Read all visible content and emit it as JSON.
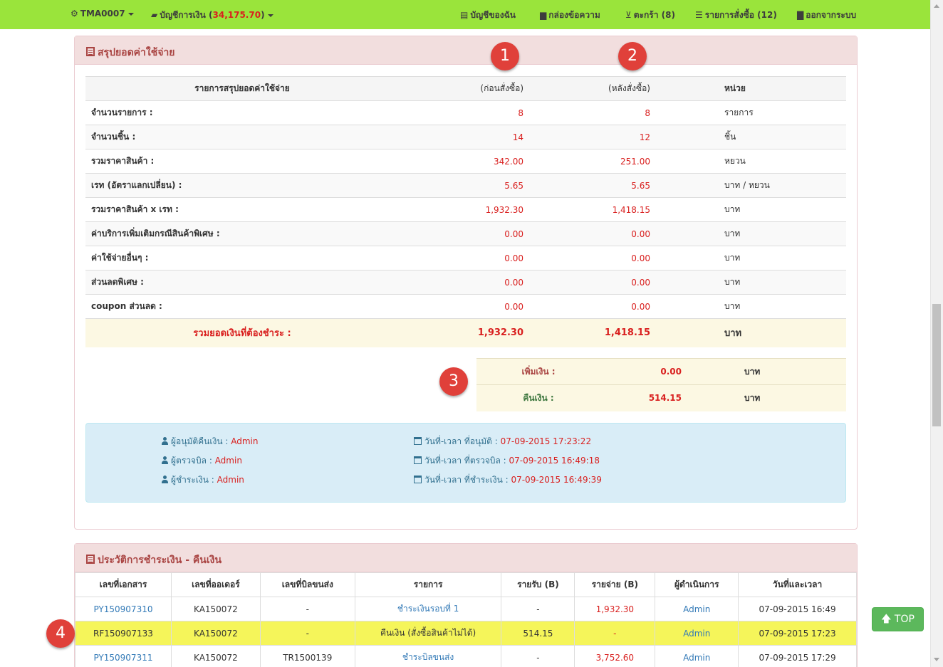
{
  "nav": {
    "user": "TMA0007",
    "account_label": "บัญชีการเงิน (",
    "account_balance": "34,175.70",
    "account_close": ")",
    "my_account": "บัญชีของฉัน",
    "messages": "กล่องข้อความ",
    "cart": "ตะกร้า (8)",
    "orders": "รายการสั่งซื้อ (12)",
    "logout": "ออกจากระบบ"
  },
  "summary": {
    "title": "สรุปยอดค่าใช้จ่าย",
    "headers": [
      "รายการสรุปยอดค่าใช้จ่าย",
      "(ก่อนสั่งซื้อ)",
      "(หลังสั่งซื้อ)",
      "หน่วย"
    ],
    "rows": [
      {
        "label": "จำนวนรายการ :",
        "before": "8",
        "after": "8",
        "unit": "รายการ"
      },
      {
        "label": "จำนวนชิ้น :",
        "before": "14",
        "after": "12",
        "unit": "ชิ้น"
      },
      {
        "label": "รวมราคาสินค้า :",
        "before": "342.00",
        "after": "251.00",
        "unit": "หยวน"
      },
      {
        "label": "เรท (อัตราแลกเปลี่ยน) :",
        "before": "5.65",
        "after": "5.65",
        "unit": "บาท / หยวน"
      },
      {
        "label": "รวมราคาสินค้า x เรท :",
        "before": "1,932.30",
        "after": "1,418.15",
        "unit": "บาท"
      },
      {
        "label": "ค่าบริการเพิ่มเติมกรณีสินค้าพิเศษ :",
        "before": "0.00",
        "after": "0.00",
        "unit": "บาท"
      },
      {
        "label": "ค่าใช้จ่ายอื่นๆ :",
        "before": "0.00",
        "after": "0.00",
        "unit": "บาท"
      },
      {
        "label": "ส่วนลดพิเศษ :",
        "before": "0.00",
        "after": "0.00",
        "unit": "บาท"
      },
      {
        "label": "coupon ส่วนลด :",
        "before": "0.00",
        "after": "0.00",
        "unit": "บาท"
      }
    ],
    "total": {
      "label": "รวมยอดเงินที่ต้องชำระ :",
      "before": "1,932.30",
      "after": "1,418.15",
      "unit": "บาท"
    }
  },
  "adjust": {
    "add_label": "เพิ่มเงิน :",
    "add_value": "0.00",
    "add_unit": "บาท",
    "refund_label": "คืนเงิน :",
    "refund_value": "514.15",
    "refund_unit": "บาท"
  },
  "approval": {
    "approver_label": "ผู้อนุมัติคืนเงิน : ",
    "approver": "Admin",
    "checker_label": "ผู้ตรวจบิล : ",
    "checker": "Admin",
    "payer_label": "ผู้ชำระเงิน : ",
    "payer": "Admin",
    "approved_label": "วันที่-เวลา ที่อนุมัติ : ",
    "approved_at": "07-09-2015 17:23:22",
    "checked_label": "วันที่-เวลา ที่ตรวจบิล : ",
    "checked_at": "07-09-2015 16:49:18",
    "paid_label": "วันที่-เวลา ที่ชำระเงิน : ",
    "paid_at": "07-09-2015 16:49:39"
  },
  "history": {
    "title": "ประวัติการชำระเงิน - คืนเงิน",
    "headers": [
      "เลขที่เอกสาร",
      "เลขที่ออเดอร์",
      "เลขที่บิลขนส่ง",
      "รายการ",
      "รายรับ (B)",
      "รายจ่าย (B)",
      "ผู้ดำเนินการ",
      "วันที่และเวลา"
    ],
    "rows": [
      {
        "doc": "PY150907310",
        "order": "KA150072",
        "bill": "-",
        "item": "ชำระเงินรอบที่ 1",
        "income": "-",
        "expense": "1,932.30",
        "operator": "Admin",
        "datetime": "07-09-2015 16:49"
      },
      {
        "doc": "RF150907133",
        "order": "KA150072",
        "bill": "-",
        "item": "คืนเงิน (สั่งซื้อสินค้าไม่ได้)",
        "income": "514.15",
        "expense": "-",
        "operator": "Admin",
        "datetime": "07-09-2015 17:23"
      },
      {
        "doc": "PY150907311",
        "order": "KA150072",
        "bill": "TR1500139",
        "item": "ชำระบิลขนส่ง",
        "income": "-",
        "expense": "3,752.60",
        "operator": "Admin",
        "datetime": "07-09-2015 17:29"
      }
    ]
  },
  "markers": [
    "1",
    "2",
    "3",
    "4"
  ],
  "top_button": "TOP"
}
